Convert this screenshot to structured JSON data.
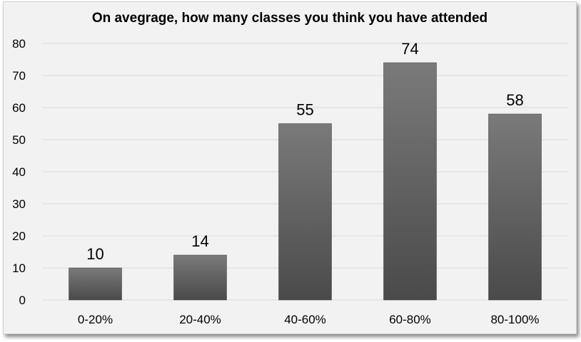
{
  "chart_data": {
    "type": "bar",
    "title": "On avegrage, how many classes you think you have attended",
    "xlabel": "",
    "ylabel": "",
    "categories": [
      "0-20%",
      "20-40%",
      "40-60%",
      "60-80%",
      "80-100%"
    ],
    "values": [
      10,
      14,
      55,
      74,
      58
    ],
    "data_labels": [
      "10",
      "14",
      "55",
      "74",
      "58"
    ],
    "y_ticks": [
      "0",
      "10",
      "20",
      "30",
      "40",
      "50",
      "60",
      "70",
      "80"
    ],
    "ylim": [
      0,
      80
    ],
    "grid": true,
    "legend": "none",
    "colors": {
      "bar_top": "#7a7a7a",
      "bar_bottom": "#4a4a4a",
      "grid": "#d9d9d9",
      "background": "#f2f2f2"
    }
  }
}
